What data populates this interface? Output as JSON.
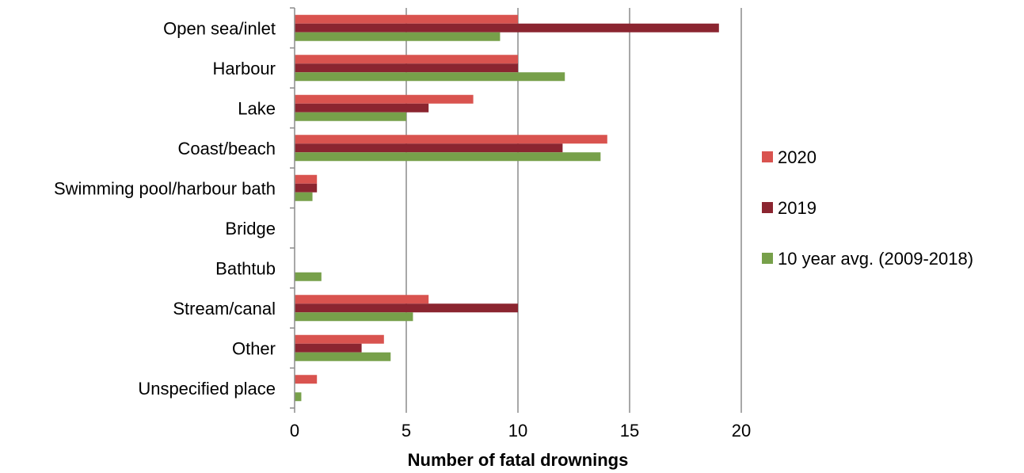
{
  "chart_data": {
    "type": "bar",
    "orientation": "horizontal",
    "title": "",
    "xlabel": "Number of fatal drownings",
    "ylabel": "",
    "xlim": [
      0,
      20
    ],
    "xticks": [
      0,
      5,
      10,
      15,
      20
    ],
    "grid": true,
    "legend_position": "right",
    "categories": [
      "Open sea/inlet",
      "Harbour",
      "Lake",
      "Coast/beach",
      "Swimming pool/harbour bath",
      "Bridge",
      "Bathtub",
      "Stream/canal",
      "Other",
      "Unspecified place"
    ],
    "series": [
      {
        "name": "2020",
        "color": "#d9534f",
        "values": [
          10,
          10,
          8,
          14,
          1,
          0,
          0,
          6,
          4,
          1
        ]
      },
      {
        "name": "2019",
        "color": "#8b2530",
        "values": [
          19,
          10,
          6,
          12,
          1,
          0,
          0,
          10,
          3,
          0
        ]
      },
      {
        "name": "10 year avg. (2009-2018)",
        "color": "#77a04a",
        "values": [
          9.2,
          12.1,
          5,
          13.7,
          0.8,
          0,
          1.2,
          5.3,
          4.3,
          0.3
        ]
      }
    ]
  }
}
